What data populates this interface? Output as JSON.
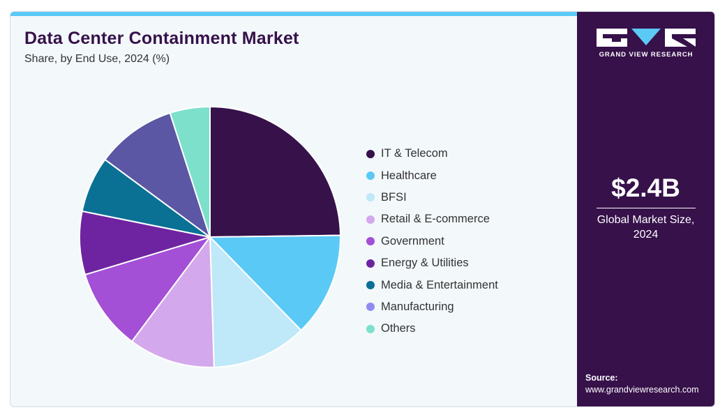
{
  "title": "Data Center Containment Market",
  "subtitle": "Share, by End Use, 2024 (%)",
  "logo": {
    "text": "GRAND VIEW RESEARCH"
  },
  "market": {
    "value": "$2.4B",
    "label": "Global Market Size, 2024"
  },
  "source": {
    "title": "Source:",
    "url": "www.grandviewresearch.com"
  },
  "colors": {
    "accent_bar": "#5bc9f5",
    "sidebar": "#36114a",
    "background": "#f3f8fb"
  },
  "chart_data": {
    "type": "pie",
    "title": "Data Center Containment Market",
    "subtitle": "Share, by End Use, 2024 (%)",
    "legend_position": "right",
    "start_angle_deg": 0,
    "direction": "clockwise",
    "slices": [
      {
        "label": "IT & Telecom",
        "value": 25.0,
        "color": "#36114a"
      },
      {
        "label": "Healthcare",
        "value": 13.0,
        "color": "#5bc9f5"
      },
      {
        "label": "BFSI",
        "value": 11.9,
        "color": "#bfe8f8"
      },
      {
        "label": "Retail & E-commerce",
        "value": 10.8,
        "color": "#d4a8ec"
      },
      {
        "label": "Government",
        "value": 10.2,
        "color": "#a34fd6"
      },
      {
        "label": "Energy & Utilities",
        "value": 7.9,
        "color": "#6e24a0"
      },
      {
        "label": "Media & Entertainment",
        "value": 7.0,
        "color": "#0a7194"
      },
      {
        "label": "Manufacturing",
        "value": 10.0,
        "color": "#5b57a5"
      },
      {
        "label": "Others",
        "value": 5.0,
        "color": "#7de0cb"
      }
    ],
    "legend_order": [
      {
        "label": "IT & Telecom",
        "color": "#36114a"
      },
      {
        "label": "Healthcare",
        "color": "#5bc9f5"
      },
      {
        "label": "BFSI",
        "color": "#bfe8f8"
      },
      {
        "label": "Retail & E-commerce",
        "color": "#d4a8ec"
      },
      {
        "label": "Government",
        "color": "#a34fd6"
      },
      {
        "label": "Energy & Utilities",
        "color": "#6e24a0"
      },
      {
        "label": "Media & Entertainment",
        "color": "#0a7194"
      },
      {
        "label": "Manufacturing",
        "color": "#8f8cf0"
      },
      {
        "label": "Others",
        "color": "#7de0cb"
      }
    ]
  }
}
